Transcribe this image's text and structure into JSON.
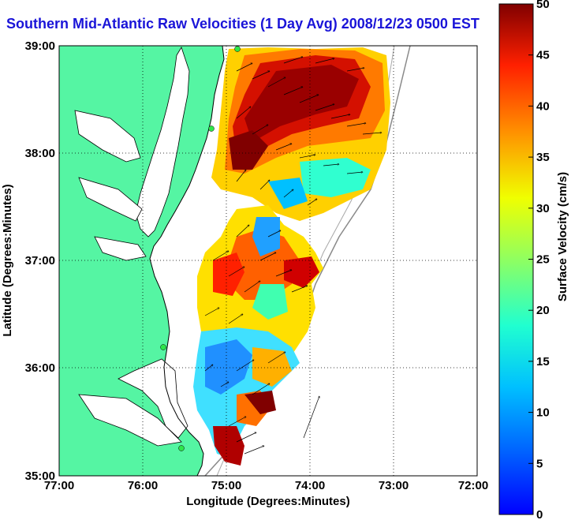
{
  "title": "Southern Mid-Atlantic Raw Velocities (1 Day Avg) 2008/12/23 0500 EST",
  "x_axis": {
    "label": "Longitude (Degrees:Minutes)",
    "ticks": [
      "77:00",
      "76:00",
      "75:00",
      "74:00",
      "73:00",
      "72:00"
    ]
  },
  "y_axis": {
    "label": "Latitude (Degrees:Minutes)",
    "ticks": [
      "39:00",
      "38:00",
      "37:00",
      "36:00",
      "35:00"
    ]
  },
  "colorbar": {
    "label": "Surface Velocity (cm/s)",
    "ticks": [
      "50",
      "45",
      "40",
      "35",
      "30",
      "25",
      "20",
      "15",
      "10",
      "5",
      "0"
    ],
    "range": [
      0,
      50
    ],
    "colormap": "jet"
  },
  "colors": {
    "land": "#55f5a3",
    "title": "#1a14d8",
    "station": "#2ee64a"
  },
  "extent": {
    "lon": [
      -77,
      -72
    ],
    "lat": [
      35,
      39
    ]
  },
  "grid": true,
  "field_regions": {
    "north": "38.4°N–38.9°N, 74.5°W–73.1°W: strong flow ~40–48 cm/s",
    "central": "36.6°N–37.3°N, 75.3°W–74.3°W: mixed 15–35 cm/s",
    "south": "35.5°N–36.4°N, 75.4°W–74.6°W: weak 5–15 cm/s near coast, strong offshore"
  }
}
